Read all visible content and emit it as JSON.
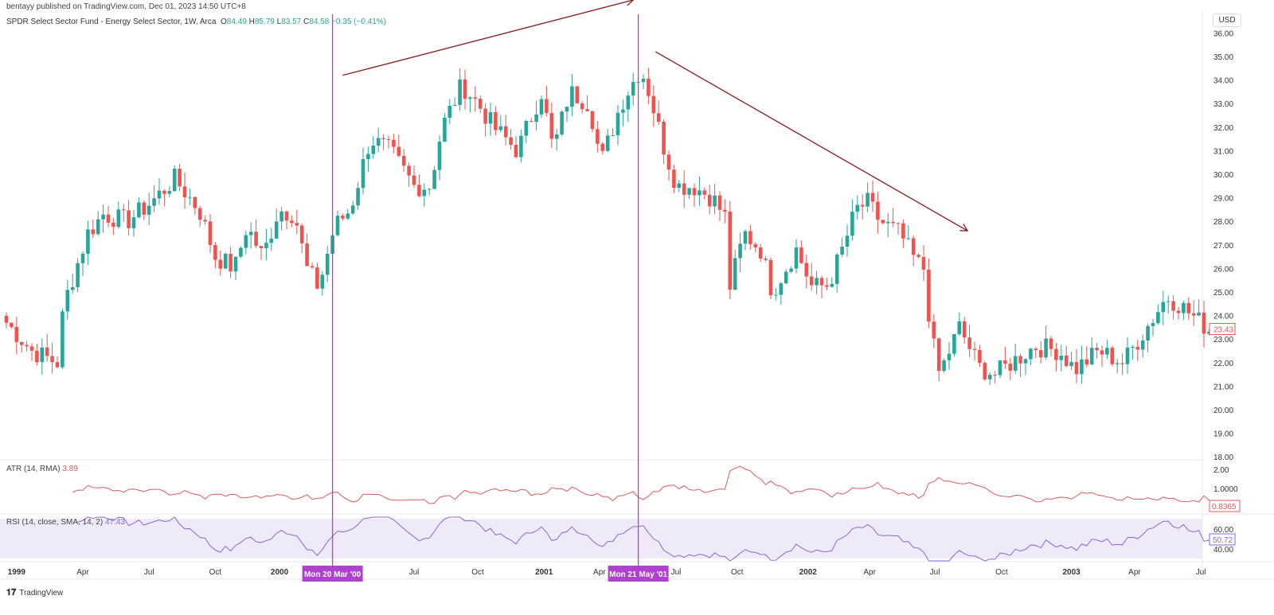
{
  "header": {
    "published": "bentayy published on TradingView.com, Dec 01, 2023 14:50 UTC+8",
    "symbol": "SPDR Select Sector Fund - Energy Select Sector, 1W, Arca",
    "ohlc": {
      "o_label": "O",
      "o": "84.49",
      "h_label": "H",
      "h": "85.79",
      "l_label": "L",
      "l": "83.57",
      "c_label": "C",
      "c": "84.58",
      "change": "−0.35 (−0.41%)"
    }
  },
  "currency": "USD",
  "indicators": {
    "atr": {
      "label": "ATR (14, RMA)",
      "value": "3.89",
      "last": "0.8365",
      "axis": [
        "2.00",
        "1.0000"
      ]
    },
    "rsi": {
      "label": "RSI (14, close, SMA, 14, 2)",
      "value": "47.43",
      "last": "50.72",
      "axis": [
        "60.00",
        "40.00"
      ]
    }
  },
  "markers": [
    {
      "week": 64,
      "label": "Mon 20 Mar '00"
    },
    {
      "week": 124,
      "label": "Mon 21 May '01"
    }
  ],
  "footer": {
    "brand": "TradingView"
  },
  "colors": {
    "up": "#26a69a",
    "down": "#ef5350",
    "marker": "#b040d0",
    "trendline": "#8b1a1a",
    "atr": "#e05a5a",
    "rsi": "#8a66d8"
  },
  "chart_data": {
    "type": "candlestick",
    "title": "SPDR Select Sector Fund - Energy Select Sector, 1W, Arca",
    "x_unit": "week index from Jan 1999",
    "ylim": [
      18,
      36
    ],
    "y_ticks": [
      "36.00",
      "35.00",
      "34.00",
      "33.00",
      "32.00",
      "31.00",
      "30.00",
      "29.00",
      "28.00",
      "27.00",
      "26.00",
      "25.00",
      "24.00",
      "23.00",
      "22.00",
      "21.00",
      "20.00",
      "19.00",
      "18.00"
    ],
    "x_ticks": [
      {
        "w": 2,
        "label": "1999",
        "bold": true
      },
      {
        "w": 15,
        "label": "Apr"
      },
      {
        "w": 28,
        "label": "Jul"
      },
      {
        "w": 41,
        "label": "Oct"
      },
      {
        "w": 53.6,
        "label": "2000",
        "bold": true
      },
      {
        "w": 80,
        "label": "Jul"
      },
      {
        "w": 92.5,
        "label": "Oct"
      },
      {
        "w": 105.5,
        "label": "2001",
        "bold": true
      },
      {
        "w": 119,
        "label": "Apr"
      },
      {
        "w": 130.5,
        "label": "Jul"
      },
      {
        "w": 143.4,
        "label": "Oct"
      },
      {
        "w": 157.3,
        "label": "2002",
        "bold": true
      },
      {
        "w": 169.4,
        "label": "Apr"
      },
      {
        "w": 182.2,
        "label": "Jul"
      },
      {
        "w": 195.3,
        "label": "Oct"
      },
      {
        "w": 209,
        "label": "2003",
        "bold": true
      },
      {
        "w": 221.4,
        "label": "Apr"
      },
      {
        "w": 234.4,
        "label": "Jul"
      }
    ],
    "last_price": "23.43",
    "close_anchors": [
      [
        0,
        23.7
      ],
      [
        5,
        22.5
      ],
      [
        10,
        22.0
      ],
      [
        11.3,
        24.5
      ],
      [
        16,
        27.5
      ],
      [
        19,
        28.3
      ],
      [
        23.7,
        28.0
      ],
      [
        28.4,
        28.8
      ],
      [
        33,
        29.8
      ],
      [
        37.8,
        28.5
      ],
      [
        41,
        26.5
      ],
      [
        44.8,
        26.0
      ],
      [
        47.2,
        27.8
      ],
      [
        50.3,
        26.5
      ],
      [
        53.4,
        28.5
      ],
      [
        56.6,
        28.3
      ],
      [
        58.9,
        26.0
      ],
      [
        61.3,
        25.2
      ],
      [
        64.4,
        27.8
      ],
      [
        67.5,
        28.5
      ],
      [
        71.4,
        31.5
      ],
      [
        75.3,
        31.0
      ],
      [
        80,
        29.5
      ],
      [
        83.1,
        29.5
      ],
      [
        85.5,
        32.0
      ],
      [
        89.4,
        33.8
      ],
      [
        92.5,
        33.0
      ],
      [
        95.6,
        32.0
      ],
      [
        100.3,
        31.0
      ],
      [
        105,
        33.5
      ],
      [
        107.3,
        31.0
      ],
      [
        110.5,
        33.5
      ],
      [
        114.4,
        33.0
      ],
      [
        116.7,
        30.5
      ],
      [
        120.6,
        33.0
      ],
      [
        124.5,
        34.5
      ],
      [
        126.1,
        33.5
      ],
      [
        129.2,
        31.0
      ],
      [
        131.6,
        29.5
      ],
      [
        134.7,
        29.5
      ],
      [
        138.6,
        29.0
      ],
      [
        141,
        28.2
      ],
      [
        141.7,
        25.0
      ],
      [
        144.8,
        27.5
      ],
      [
        148,
        26.8
      ],
      [
        150.3,
        25.0
      ],
      [
        155,
        26.8
      ],
      [
        158.1,
        25.2
      ],
      [
        161.3,
        25.3
      ],
      [
        164.4,
        27.0
      ],
      [
        166.7,
        28.5
      ],
      [
        169.1,
        28.8
      ],
      [
        171.4,
        28.0
      ],
      [
        175.3,
        27.5
      ],
      [
        178.4,
        26.3
      ],
      [
        180,
        26.0
      ],
      [
        181.6,
        23.0
      ],
      [
        183.1,
        21.5
      ],
      [
        187,
        23.5
      ],
      [
        190.9,
        21.8
      ],
      [
        194,
        21.5
      ],
      [
        197.2,
        22.0
      ],
      [
        201.9,
        22.7
      ],
      [
        206.6,
        22.5
      ],
      [
        209.7,
        21.7
      ],
      [
        214.4,
        22.5
      ],
      [
        219.1,
        22.0
      ],
      [
        223.8,
        23.5
      ],
      [
        227.7,
        24.8
      ],
      [
        230,
        24.5
      ],
      [
        236,
        23.4
      ]
    ],
    "trendlines": [
      {
        "from": [
          66,
          34.2
        ],
        "to": [
          123,
          37.4
        ]
      },
      {
        "from": [
          127.4,
          35.2
        ],
        "to": [
          188.6,
          27.6
        ]
      }
    ]
  }
}
